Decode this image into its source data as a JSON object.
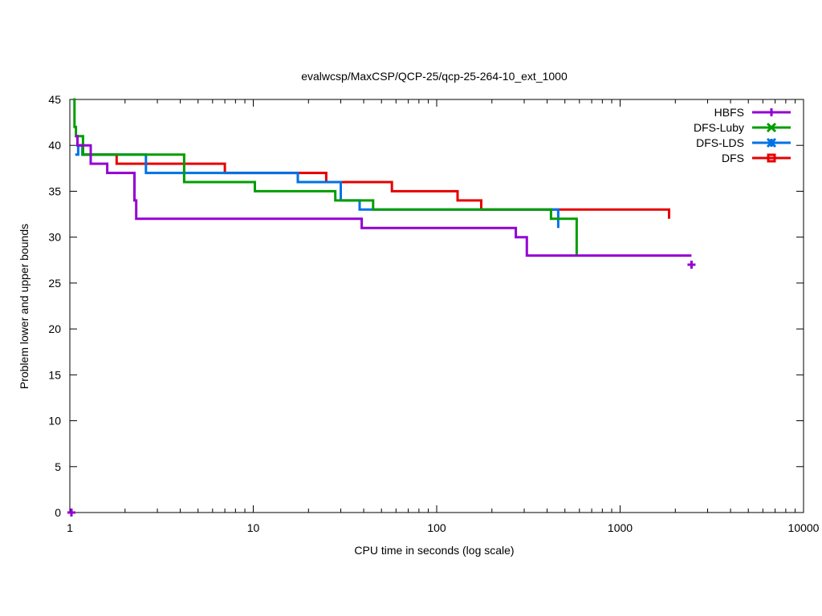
{
  "chart_data": {
    "type": "line",
    "title": "evalwcsp/MaxCSP/QCP-25/qcp-25-264-10_ext_1000",
    "xlabel": "CPU time in seconds (log scale)",
    "ylabel": "Problem lower and upper bounds",
    "xscale": "log",
    "xlim": [
      1,
      10000
    ],
    "ylim": [
      0,
      45
    ],
    "x_ticks": [
      {
        "value": 1,
        "label": "1"
      },
      {
        "value": 10,
        "label": "10"
      },
      {
        "value": 100,
        "label": "100"
      },
      {
        "value": 1000,
        "label": "1000"
      },
      {
        "value": 10000,
        "label": "10000"
      }
    ],
    "y_ticks": [
      {
        "value": 0,
        "label": "0"
      },
      {
        "value": 5,
        "label": "5"
      },
      {
        "value": 10,
        "label": "10"
      },
      {
        "value": 15,
        "label": "15"
      },
      {
        "value": 20,
        "label": "20"
      },
      {
        "value": 25,
        "label": "25"
      },
      {
        "value": 30,
        "label": "30"
      },
      {
        "value": 35,
        "label": "35"
      },
      {
        "value": 40,
        "label": "40"
      },
      {
        "value": 45,
        "label": "45"
      }
    ],
    "legend_position": "top-right",
    "grid": false,
    "step": true,
    "series": [
      {
        "name": "HBFS",
        "color": "#9400d3",
        "marker": "plus",
        "points": [
          [
            1.07,
            41
          ],
          [
            1.1,
            40
          ],
          [
            1.3,
            38
          ],
          [
            1.6,
            37
          ],
          [
            2.25,
            34
          ],
          [
            2.3,
            32
          ],
          [
            39,
            31
          ],
          [
            270,
            30
          ],
          [
            310,
            28
          ],
          [
            2450,
            28
          ]
        ],
        "lower_bound": [
          [
            1.02,
            0
          ],
          [
            2450,
            27
          ]
        ]
      },
      {
        "name": "DFS-Luby",
        "color": "#009e00",
        "marker": "x",
        "points": [
          [
            1.04,
            45
          ],
          [
            1.06,
            42
          ],
          [
            1.08,
            41
          ],
          [
            1.18,
            39
          ],
          [
            4.2,
            36
          ],
          [
            10.2,
            35
          ],
          [
            28,
            34
          ],
          [
            45,
            33
          ],
          [
            420,
            32
          ],
          [
            580,
            28
          ]
        ]
      },
      {
        "name": "DFS-LDS",
        "color": "#0072e6",
        "marker": "star",
        "points": [
          [
            1.07,
            39
          ],
          [
            1.11,
            40
          ],
          [
            1.17,
            39
          ],
          [
            2.6,
            37
          ],
          [
            17.5,
            36
          ],
          [
            30,
            34
          ],
          [
            38,
            33
          ],
          [
            460,
            31
          ]
        ]
      },
      {
        "name": "DFS",
        "color": "#e60000",
        "marker": "square",
        "points": [
          [
            1.1,
            40
          ],
          [
            1.18,
            39
          ],
          [
            1.8,
            38
          ],
          [
            7,
            37
          ],
          [
            25,
            36
          ],
          [
            57,
            35
          ],
          [
            130,
            34
          ],
          [
            175,
            33
          ],
          [
            1850,
            32
          ]
        ]
      }
    ]
  }
}
